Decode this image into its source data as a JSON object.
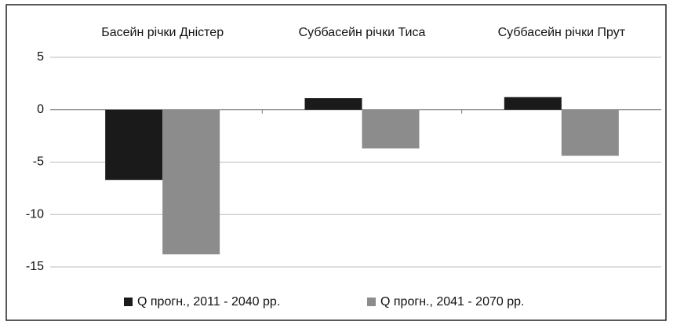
{
  "chart_data": {
    "type": "bar",
    "categories": [
      "Басейн річки Дністер",
      "Суббасейн річки Тиса",
      "Суббасейн річки Прут"
    ],
    "series": [
      {
        "name": "Q прогн., 2011 - 2040 рр.",
        "color": "#1a1a1a",
        "values": [
          -6.7,
          1.1,
          1.2
        ]
      },
      {
        "name": "Q прогн., 2041 - 2070 рр.",
        "color": "#8c8c8c",
        "values": [
          -13.8,
          -3.7,
          -4.4
        ]
      }
    ],
    "ylim": [
      -15,
      5
    ],
    "yticks": [
      -15,
      -10,
      -5,
      0,
      5
    ],
    "grid": true,
    "legend": "bottom"
  }
}
